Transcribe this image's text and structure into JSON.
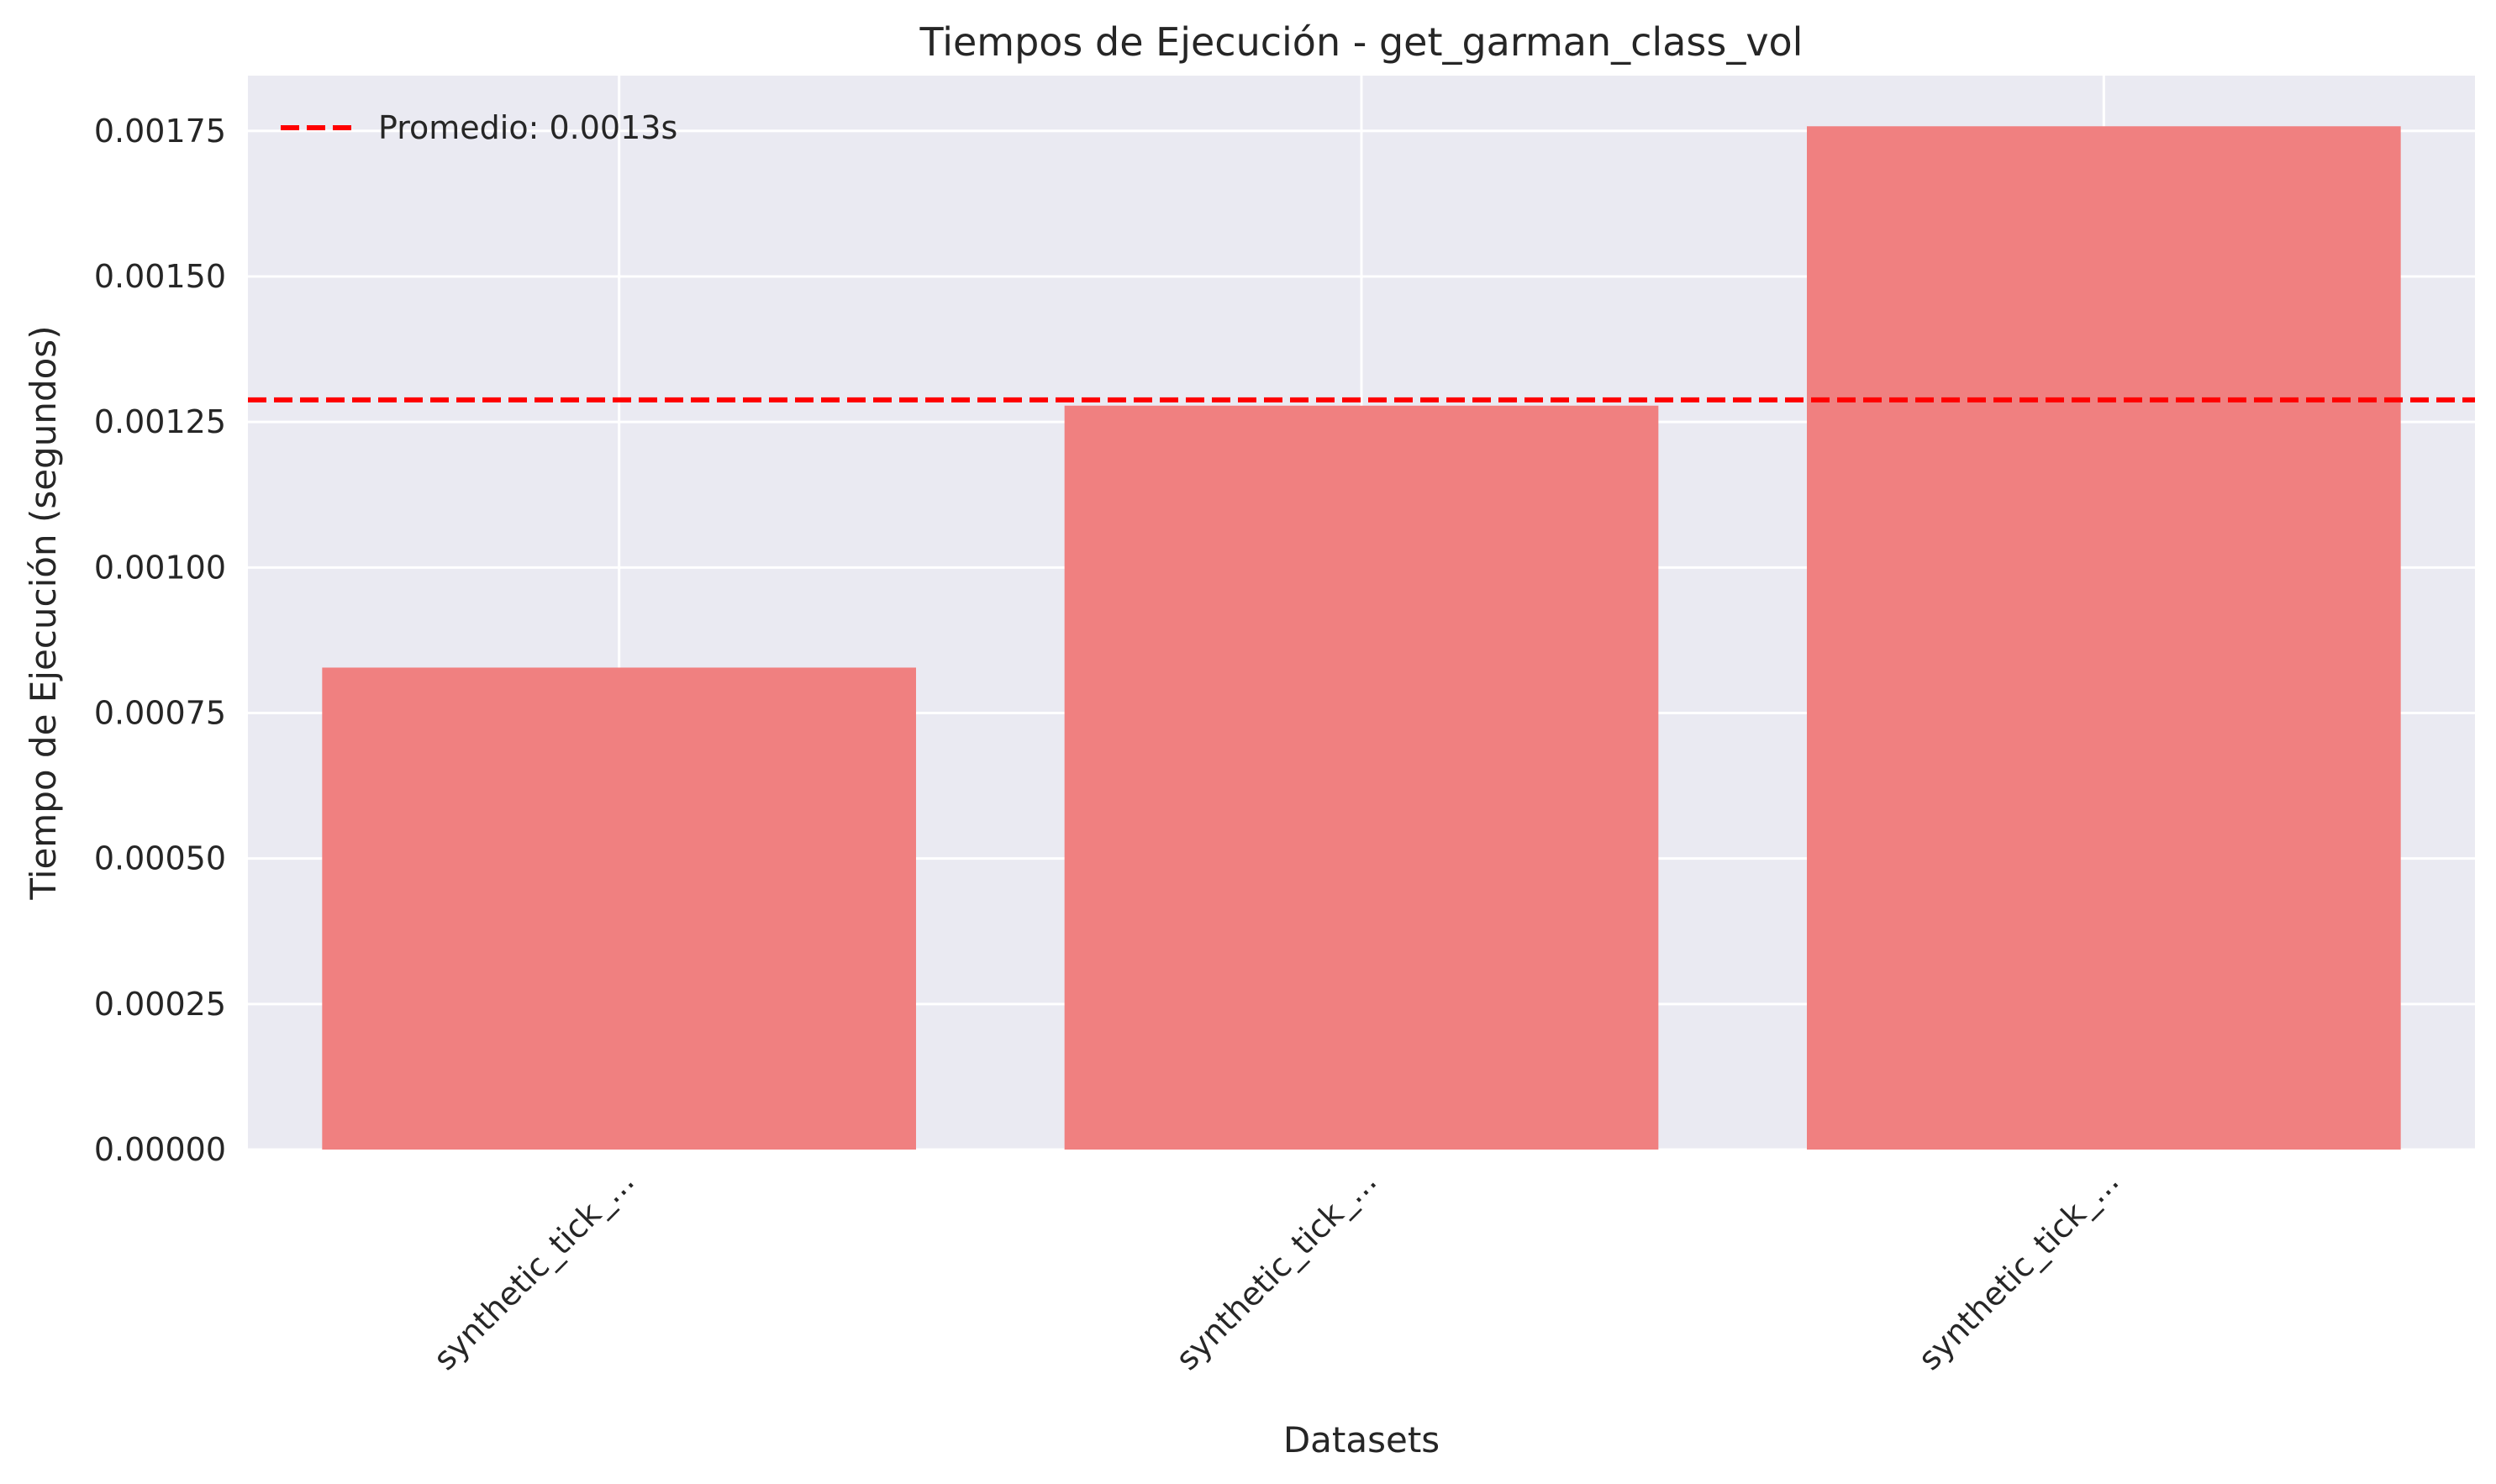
{
  "chart_data": {
    "type": "bar",
    "title": "Tiempos de Ejecución - get_garman_class_vol",
    "xlabel": "Datasets",
    "ylabel": "Tiempo de Ejecución (segundos)",
    "categories": [
      "synthetic_tick_...",
      "synthetic_tick_...",
      "synthetic_tick_..."
    ],
    "values": [
      0.000828,
      0.001278,
      0.001758
    ],
    "ylim": [
      0,
      0.001845
    ],
    "yticks": [
      0,
      0.00025,
      0.0005,
      0.00075,
      0.001,
      0.00125,
      0.0015,
      0.00175
    ],
    "ytick_labels": [
      "0.00000",
      "0.00025",
      "0.00050",
      "0.00075",
      "0.00100",
      "0.00125",
      "0.00150",
      "0.00175"
    ],
    "average_line": {
      "value": 0.001288,
      "label": "Promedio: 0.0013s",
      "color": "#ff0000"
    },
    "bar_color": "#f08080",
    "background_color": "#eaeaf2",
    "grid": true,
    "legend_position": "top-left"
  }
}
